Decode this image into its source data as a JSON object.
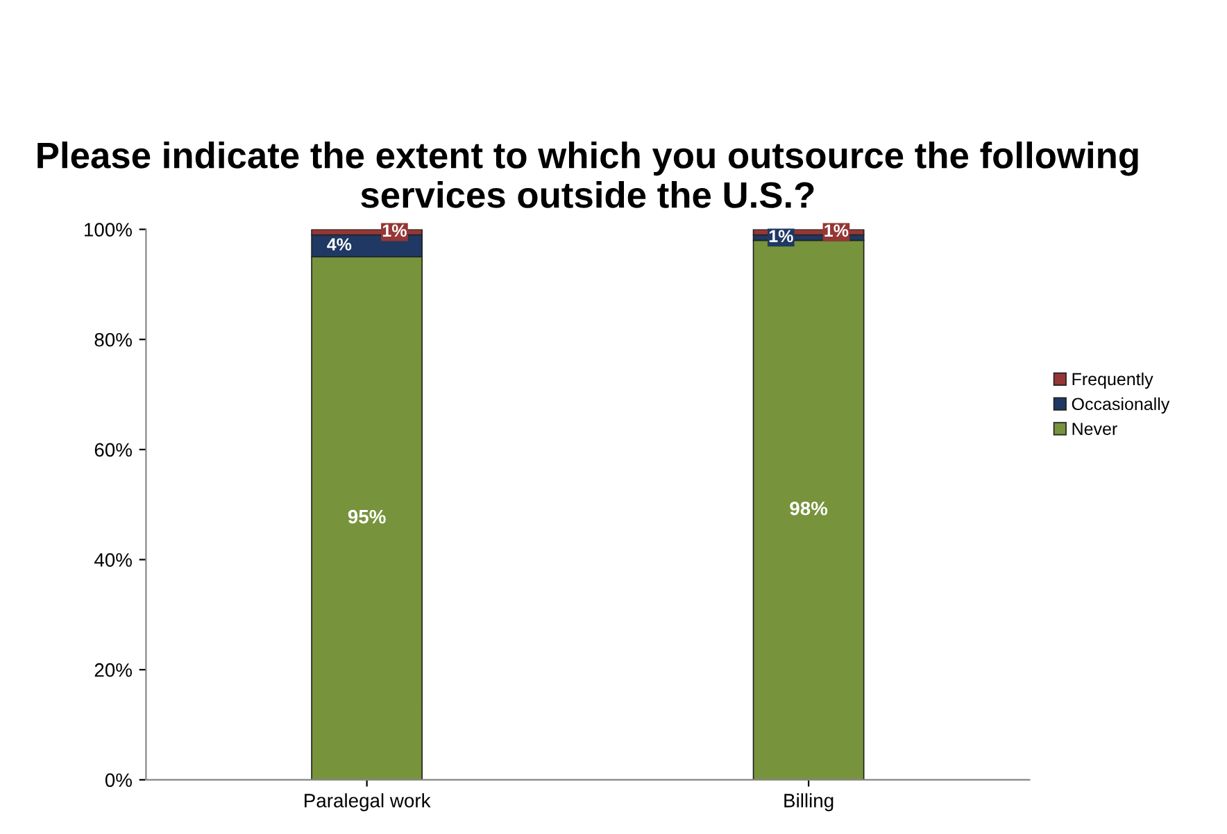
{
  "chart_data": {
    "type": "bar",
    "title": "Please indicate the extent to which you outsource the following services outside the U.S.?",
    "categories": [
      "Paralegal work",
      "Billing"
    ],
    "stacked": true,
    "legend": "right",
    "grid": false,
    "ylim": [
      0,
      100
    ],
    "yticks": [
      {
        "value": 0,
        "label": "0%"
      },
      {
        "value": 20,
        "label": "20%"
      },
      {
        "value": 40,
        "label": "40%"
      },
      {
        "value": 60,
        "label": "60%"
      },
      {
        "value": 80,
        "label": "80%"
      },
      {
        "value": 100,
        "label": "100%"
      }
    ],
    "series": [
      {
        "name": "Never",
        "color": "#77933c",
        "values": [
          95,
          98
        ],
        "value_labels": [
          "95%",
          "98%"
        ]
      },
      {
        "name": "Occasionally",
        "color": "#1f3864",
        "values": [
          4,
          1
        ],
        "value_labels": [
          "4%",
          "1%"
        ]
      },
      {
        "name": "Frequently",
        "color": "#953735",
        "values": [
          1,
          1
        ],
        "value_labels": [
          "1%",
          "1%"
        ]
      }
    ]
  }
}
